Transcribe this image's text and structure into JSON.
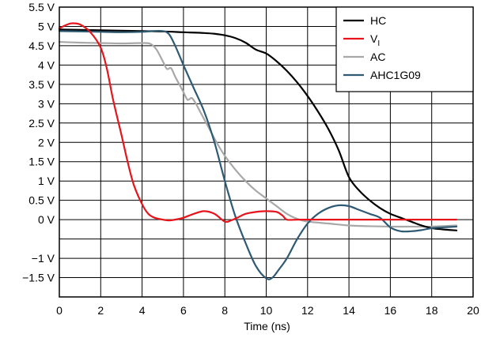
{
  "chart_data": {
    "type": "line",
    "title": "",
    "xlabel": "Time (ns)",
    "ylabel": "",
    "xlim": [
      0,
      20
    ],
    "ylim": [
      -2,
      5.5
    ],
    "xticks": [
      0,
      2,
      4,
      6,
      8,
      10,
      12,
      14,
      16,
      18,
      20
    ],
    "xtick_labels": [
      "0",
      "2",
      "4",
      "6",
      "8",
      "10",
      "12",
      "14",
      "16",
      "18",
      "20"
    ],
    "yticks": [
      5.5,
      5,
      4.5,
      4,
      3.5,
      3,
      2.5,
      2,
      1.5,
      1,
      0.5,
      0,
      -1,
      -1.5
    ],
    "ytick_labels": [
      "5.5 V",
      "5 V",
      "4.5 V",
      "4 V",
      "3.5 V",
      "3 V",
      "2.5 V",
      "2 V",
      "1.5 V",
      "1 V",
      "0.5 V",
      "0 V",
      "−1 V",
      "−1.5 V"
    ],
    "grid": true,
    "legend_position": "top-right",
    "series": [
      {
        "name": "HC",
        "name_main": "HC",
        "name_sub": "",
        "color": "#000000",
        "x": [
          0,
          2,
          4,
          5,
          6,
          7,
          7.5,
          8,
          8.5,
          9,
          9.5,
          10,
          10.5,
          11,
          11.5,
          12,
          12.5,
          13,
          13.5,
          14,
          14.5,
          15,
          15.5,
          16,
          16.5,
          17,
          17.5,
          18,
          18.5,
          19.2
        ],
        "y": [
          4.92,
          4.9,
          4.88,
          4.87,
          4.85,
          4.83,
          4.81,
          4.77,
          4.7,
          4.58,
          4.4,
          4.3,
          4.1,
          3.85,
          3.55,
          3.2,
          2.8,
          2.35,
          1.8,
          1.1,
          0.75,
          0.5,
          0.3,
          0.15,
          0.05,
          -0.05,
          -0.15,
          -0.22,
          -0.25,
          -0.28
        ]
      },
      {
        "name": "VI",
        "name_main": "V",
        "name_sub": "I",
        "color": "#e8141c",
        "x": [
          0,
          0.3,
          0.6,
          1,
          1.5,
          2,
          2.3,
          2.6,
          3,
          3.3,
          3.6,
          4,
          4.3,
          4.6,
          5,
          5.3,
          5.6,
          6,
          6.5,
          7,
          7.5,
          8,
          8.3,
          8.6,
          9,
          9.5,
          10,
          10.5,
          10.8,
          11,
          11.5,
          12,
          13,
          14,
          15,
          16,
          17,
          18,
          19.2
        ],
        "y": [
          4.95,
          5.03,
          5.08,
          5.05,
          4.85,
          4.45,
          3.9,
          3.1,
          2.2,
          1.5,
          0.9,
          0.4,
          0.15,
          0.05,
          0,
          -0.02,
          0,
          0.05,
          0.15,
          0.22,
          0.15,
          -0.05,
          -0.02,
          0.05,
          0.15,
          0.2,
          0.22,
          0.2,
          0.1,
          0,
          0,
          0,
          0,
          0,
          0,
          0,
          0,
          0,
          0
        ]
      },
      {
        "name": "AC",
        "name_main": "AC",
        "name_sub": "",
        "color": "#a8a8a8",
        "x": [
          0,
          1,
          2,
          3,
          4,
          4.4,
          4.7,
          5,
          5.2,
          5.4,
          5.6,
          5.8,
          6,
          6.2,
          6.4,
          6.6,
          6.8,
          7,
          7.3,
          7.6,
          8,
          8.5,
          9,
          9.5,
          10,
          10.5,
          11,
          11.5,
          12,
          13,
          14,
          15,
          16,
          17,
          18,
          19.2
        ],
        "y": [
          4.6,
          4.58,
          4.57,
          4.56,
          4.57,
          4.55,
          4.4,
          4.1,
          3.9,
          3.92,
          3.7,
          3.5,
          3.3,
          3.1,
          3.15,
          3.0,
          2.8,
          2.6,
          2.3,
          2.0,
          1.65,
          1.3,
          1.0,
          0.75,
          0.55,
          0.35,
          0.15,
          0.02,
          -0.05,
          -0.1,
          -0.15,
          -0.17,
          -0.18,
          -0.18,
          -0.18,
          -0.15
        ]
      },
      {
        "name": "AHC1G09",
        "name_main": "AHC1G09",
        "name_sub": "",
        "color": "#2e5a74",
        "x": [
          0,
          1,
          2,
          3,
          4,
          4.5,
          5,
          5.3,
          5.6,
          6,
          6.5,
          7,
          7.5,
          8,
          8.5,
          9,
          9.5,
          10,
          10.3,
          10.6,
          11,
          11.5,
          12,
          12.5,
          13,
          13.5,
          14,
          14.5,
          15,
          15.5,
          16,
          16.5,
          17,
          17.5,
          18,
          18.5,
          19.2
        ],
        "y": [
          4.88,
          4.87,
          4.86,
          4.85,
          4.86,
          4.88,
          4.88,
          4.8,
          4.5,
          4.0,
          3.4,
          2.8,
          2.0,
          1.0,
          0.1,
          -0.6,
          -1.2,
          -1.52,
          -1.5,
          -1.3,
          -1.0,
          -0.5,
          -0.1,
          0.15,
          0.3,
          0.37,
          0.35,
          0.25,
          0.15,
          0.05,
          -0.2,
          -0.3,
          -0.3,
          -0.27,
          -0.22,
          -0.2,
          -0.18
        ]
      }
    ]
  }
}
